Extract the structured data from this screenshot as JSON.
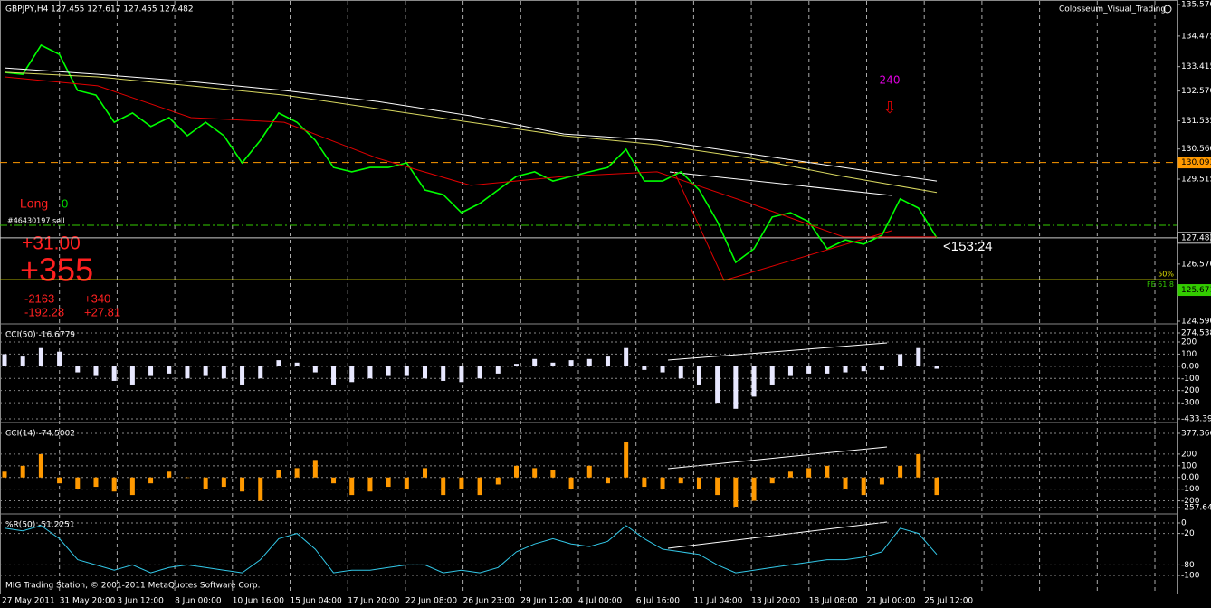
{
  "header": {
    "symbol": "GBPJPY,H4  127.455 127.617 127.455 127.482",
    "indicator": "Colosseum_Visual_Trading"
  },
  "signal": {
    "label": "240"
  },
  "trade": {
    "direction": "Long",
    "count": "0",
    "ticket": "#46430197 sell",
    "profit": "+31.00",
    "pips": "+355",
    "left1": "-2163",
    "right1": "+340",
    "left2": "-192.28",
    "right2": "+27.81",
    "timer": "<153:24"
  },
  "footer": "MIG Trading Station, © 2001-2011 MetaQuotes Software Corp.",
  "time_axis": [
    "27 May 2011",
    "31 May 20:00",
    "3 Jun 12:00",
    "8 Jun 00:00",
    "10 Jun 16:00",
    "15 Jun 04:00",
    "17 Jun 20:00",
    "22 Jun 08:00",
    "26 Jun 23:00",
    "29 Jun 12:00",
    "4 Jul 00:00",
    "6 Jul 16:00",
    "11 Jul 04:00",
    "13 Jul 20:00",
    "18 Jul 08:00",
    "21 Jul 00:00",
    "25 Jul 12:00"
  ],
  "chart_data": [
    {
      "type": "line",
      "series": [
        {
          "color": "#00ff00",
          "values": [
            133.22,
            133.15,
            134.16,
            133.84,
            132.59,
            132.43,
            131.49,
            131.81,
            131.34,
            131.65,
            131.02,
            131.49,
            131.02,
            130.08,
            130.86,
            131.81,
            131.49,
            130.86,
            129.92,
            129.77,
            129.92,
            129.92,
            130.08,
            129.14,
            128.98,
            128.35,
            128.67,
            129.14,
            129.61,
            129.77,
            129.45,
            129.61,
            129.77,
            129.92,
            130.55,
            129.45,
            129.45,
            129.77,
            129.14,
            128.04,
            126.63,
            127.1,
            128.2,
            128.35,
            128.04,
            127.1,
            127.41,
            127.26,
            127.57,
            128.83,
            128.51,
            127.48
          ]
        },
        {
          "color": "#e00000",
          "values": [
            133.06,
            132.75,
            131.65,
            131.49,
            130.24,
            129.3,
            129.61,
            129.77,
            128.67,
            127.51,
            127.51
          ]
        },
        {
          "color": "#d8d860",
          "values": [
            133.22,
            133.06,
            132.75,
            132.43,
            131.96,
            131.49,
            131.02,
            130.71,
            130.24,
            129.61,
            129.05
          ]
        },
        {
          "color": "#ffffff",
          "values": [
            133.37,
            133.15,
            132.9,
            132.59,
            132.21,
            131.71,
            131.08,
            130.86,
            130.39,
            129.92,
            129.45
          ]
        }
      ],
      "ylim": [
        124.59,
        135.57
      ],
      "yticks": [
        {
          "value": 135.57,
          "label": "135.570"
        },
        134.475,
        133.415,
        {
          "value": 132.57,
          "label": "132.570"
        },
        131.535,
        {
          "value": 130.56,
          "label": "130.560"
        },
        129.515,
        {
          "value": 126.57,
          "label": "126.570"
        },
        {
          "value": 124.59,
          "label": "124.590"
        }
      ],
      "levels": [
        {
          "price": 130.093,
          "color": "#ff9900",
          "dash": "8,6",
          "axis_label": true
        },
        {
          "price": 127.916,
          "color": "#33cc00",
          "dash": "8,3,2,3",
          "axis_label": false
        },
        {
          "price": 127.482,
          "color": "#cccccc",
          "dash": "none",
          "axis_label": true
        },
        {
          "price": 126.03,
          "color": "#e0e000",
          "dash": "none",
          "axis_label": false,
          "tag": "50%"
        },
        {
          "price": 125.671,
          "color": "#33cc00",
          "dash": "none",
          "axis_label": true,
          "tag": "FE 61.8"
        }
      ]
    },
    {
      "type": "bar",
      "label": "CCI(50) -16.6779",
      "color": "#e8e8ff",
      "values": [
        100,
        80,
        150,
        120,
        -50,
        -80,
        -120,
        -150,
        -80,
        -60,
        -100,
        -80,
        -100,
        -150,
        -100,
        50,
        30,
        -50,
        -150,
        -130,
        -100,
        -80,
        -80,
        -100,
        -120,
        -130,
        -100,
        -60,
        20,
        60,
        30,
        50,
        60,
        80,
        150,
        -30,
        -50,
        -100,
        -150,
        -300,
        -350,
        -250,
        -150,
        -80,
        -60,
        -60,
        -50,
        -40,
        -30,
        100,
        150,
        -20
      ],
      "ylim": [
        -433.392,
        274.538
      ],
      "yticks": [
        274.538,
        200,
        100,
        {
          "value": 0,
          "label": "0.00"
        },
        -100,
        -200,
        -300,
        -433.392
      ]
    },
    {
      "type": "bar",
      "label": "CCI(14) -74.5002",
      "color": "#ff9900",
      "values": [
        50,
        100,
        200,
        -50,
        -100,
        -80,
        -120,
        -150,
        -50,
        50,
        0,
        -100,
        -80,
        -120,
        -200,
        60,
        80,
        150,
        -50,
        -150,
        -120,
        -80,
        -100,
        80,
        -150,
        -100,
        -150,
        -60,
        100,
        80,
        60,
        -100,
        100,
        -50,
        300,
        -80,
        -100,
        -50,
        -100,
        -150,
        -250,
        -200,
        -50,
        50,
        80,
        100,
        -100,
        -150,
        -60,
        100,
        200,
        -150
      ],
      "ylim": [
        -257.64,
        377.366
      ],
      "yticks": [
        377.366,
        200,
        100,
        {
          "value": 0,
          "label": "0.00"
        },
        -100,
        -200,
        {
          "value": -257.64,
          "label": "-257.640"
        }
      ]
    },
    {
      "type": "line",
      "label": "%R(50) -51.2251",
      "series": [
        {
          "color": "#33c8e8",
          "values": [
            -10,
            -15,
            -5,
            -30,
            -70,
            -80,
            -90,
            -80,
            -95,
            -85,
            -80,
            -85,
            -90,
            -95,
            -70,
            -30,
            -20,
            -50,
            -95,
            -90,
            -90,
            -85,
            -80,
            -80,
            -95,
            -90,
            -95,
            -85,
            -55,
            -40,
            -30,
            -40,
            -45,
            -35,
            -5,
            -30,
            -50,
            -55,
            -60,
            -80,
            -95,
            -90,
            -85,
            -80,
            -75,
            -70,
            -70,
            -65,
            -55,
            -10,
            -20,
            -60
          ]
        }
      ],
      "ylim": [
        -100,
        0
      ],
      "yticks": [
        0,
        -20,
        -80,
        -100
      ]
    }
  ]
}
